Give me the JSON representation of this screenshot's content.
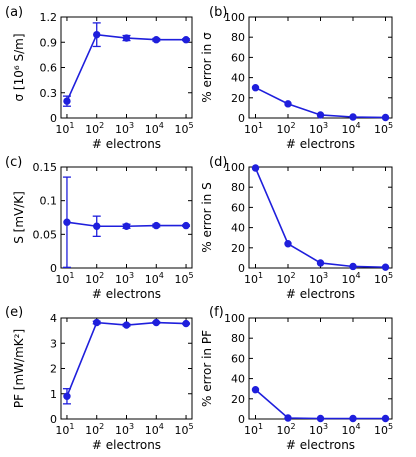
{
  "chart_data": [
    {
      "panel_label": "(a)",
      "type": "line",
      "x": [
        10,
        100,
        1000,
        10000,
        100000
      ],
      "xtick_labels": [
        "10",
        "10",
        "10",
        "10",
        "10"
      ],
      "xtick_exponents": [
        "1",
        "2",
        "3",
        "4",
        "5"
      ],
      "xlabel": "# electrons",
      "ylabel": "σ [10⁶ S/m]",
      "ylim": [
        0,
        1.2
      ],
      "yticks": [
        0,
        0.3,
        0.6,
        0.9,
        1.2
      ],
      "ytick_labels": [
        "0",
        "0.3",
        "0.6",
        "0.9",
        "1.2"
      ],
      "xscale": "log",
      "values": [
        0.2,
        0.99,
        0.95,
        0.93,
        0.93
      ],
      "errors": [
        0.06,
        0.14,
        0.03,
        0.015,
        0.01
      ],
      "color": "#1f1fdc"
    },
    {
      "panel_label": "(b)",
      "type": "line",
      "x": [
        10,
        100,
        1000,
        10000,
        100000
      ],
      "xtick_labels": [
        "10",
        "10",
        "10",
        "10",
        "10"
      ],
      "xtick_exponents": [
        "1",
        "2",
        "3",
        "4",
        "5"
      ],
      "xlabel": "# electrons",
      "ylabel": "% error in σ",
      "ylim": [
        0,
        100
      ],
      "yticks": [
        0,
        20,
        40,
        60,
        80,
        100
      ],
      "ytick_labels": [
        "0",
        "20",
        "40",
        "60",
        "80",
        "100"
      ],
      "xscale": "log",
      "values": [
        30,
        14,
        3,
        1,
        0.5
      ],
      "errors": [],
      "color": "#1f1fdc"
    },
    {
      "panel_label": "(c)",
      "type": "line",
      "x": [
        10,
        100,
        1000,
        10000,
        100000
      ],
      "xtick_labels": [
        "10",
        "10",
        "10",
        "10",
        "10"
      ],
      "xtick_exponents": [
        "1",
        "2",
        "3",
        "4",
        "5"
      ],
      "xlabel": "# electrons",
      "ylabel": "S [mV/K]",
      "ylim": [
        0,
        0.15
      ],
      "yticks": [
        0,
        0.05,
        0.1,
        0.15
      ],
      "ytick_labels": [
        "0",
        "0.05",
        "0.1",
        "0.15"
      ],
      "xscale": "log",
      "values": [
        0.068,
        0.062,
        0.062,
        0.063,
        0.063
      ],
      "errors": [
        0.067,
        0.015,
        0.003,
        0.002,
        0.001
      ],
      "color": "#1f1fdc"
    },
    {
      "panel_label": "(d)",
      "type": "line",
      "x": [
        10,
        100,
        1000,
        10000,
        100000
      ],
      "xtick_labels": [
        "10",
        "10",
        "10",
        "10",
        "10"
      ],
      "xtick_exponents": [
        "1",
        "2",
        "3",
        "4",
        "5"
      ],
      "xlabel": "# electrons",
      "ylabel": "% error in S",
      "ylim": [
        0,
        100
      ],
      "yticks": [
        0,
        20,
        40,
        60,
        80,
        100
      ],
      "ytick_labels": [
        "0",
        "20",
        "40",
        "60",
        "80",
        "100"
      ],
      "xscale": "log",
      "values": [
        99,
        24,
        5,
        1.5,
        0.8
      ],
      "errors": [],
      "color": "#1f1fdc"
    },
    {
      "panel_label": "(e)",
      "type": "line",
      "x": [
        10,
        100,
        1000,
        10000,
        100000
      ],
      "xtick_labels": [
        "10",
        "10",
        "10",
        "10",
        "10"
      ],
      "xtick_exponents": [
        "1",
        "2",
        "3",
        "4",
        "5"
      ],
      "xlabel": "# electrons",
      "ylabel": "PF [mW/mK²]",
      "ylim": [
        0,
        4
      ],
      "yticks": [
        0,
        1,
        2,
        3,
        4
      ],
      "ytick_labels": [
        "0",
        "1",
        "2",
        "3",
        "4"
      ],
      "xscale": "log",
      "values": [
        0.9,
        3.82,
        3.72,
        3.82,
        3.78
      ],
      "errors": [
        0.3,
        0.05,
        0.04,
        0.03,
        0.02
      ],
      "color": "#1f1fdc"
    },
    {
      "panel_label": "(f)",
      "type": "line",
      "x": [
        10,
        100,
        1000,
        10000,
        100000
      ],
      "xtick_labels": [
        "10",
        "10",
        "10",
        "10",
        "10"
      ],
      "xtick_exponents": [
        "1",
        "2",
        "3",
        "4",
        "5"
      ],
      "xlabel": "# electrons",
      "ylabel": "% error in PF",
      "ylim": [
        0,
        100
      ],
      "yticks": [
        0,
        20,
        40,
        60,
        80,
        100
      ],
      "ytick_labels": [
        "0",
        "20",
        "40",
        "60",
        "80",
        "100"
      ],
      "xscale": "log",
      "values": [
        29,
        1,
        0.5,
        0.5,
        0.5
      ],
      "errors": [],
      "color": "#1f1fdc"
    }
  ]
}
